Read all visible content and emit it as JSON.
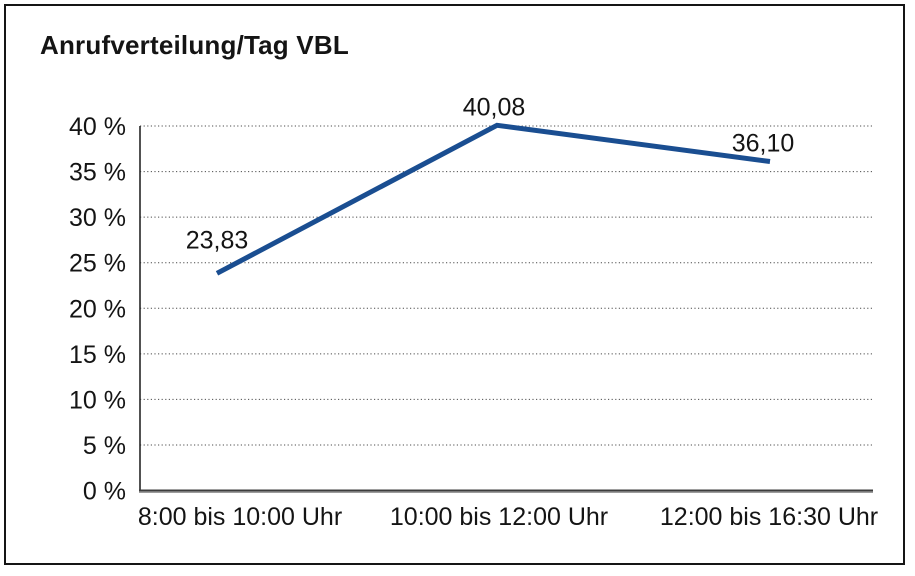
{
  "chart_data": {
    "type": "line",
    "title": "Anrufverteilung/Tag VBL",
    "categories": [
      "8:00 bis 10:00 Uhr",
      "10:00 bis 12:00 Uhr",
      "12:00 bis 16:30 Uhr"
    ],
    "values": [
      23.83,
      40.08,
      36.1
    ],
    "point_labels": [
      "23,83",
      "40,08",
      "36,10"
    ],
    "yticks": [
      "0 %",
      "5 %",
      "10 %",
      "15 %",
      "20 %",
      "25 %",
      "30 %",
      "35 %",
      "40 %"
    ],
    "ytick_step": 5,
    "ylim": [
      0,
      40
    ],
    "xlabel": "",
    "ylabel": "",
    "grid": "dotted-horizontal",
    "legend": "none",
    "line_color": "#1a4e91",
    "grid_color": "#4c4c4c",
    "axis_color": "#3d3d3d",
    "text_color": "#141414",
    "frame_color": "#151515",
    "background_color": "#ffffff"
  }
}
